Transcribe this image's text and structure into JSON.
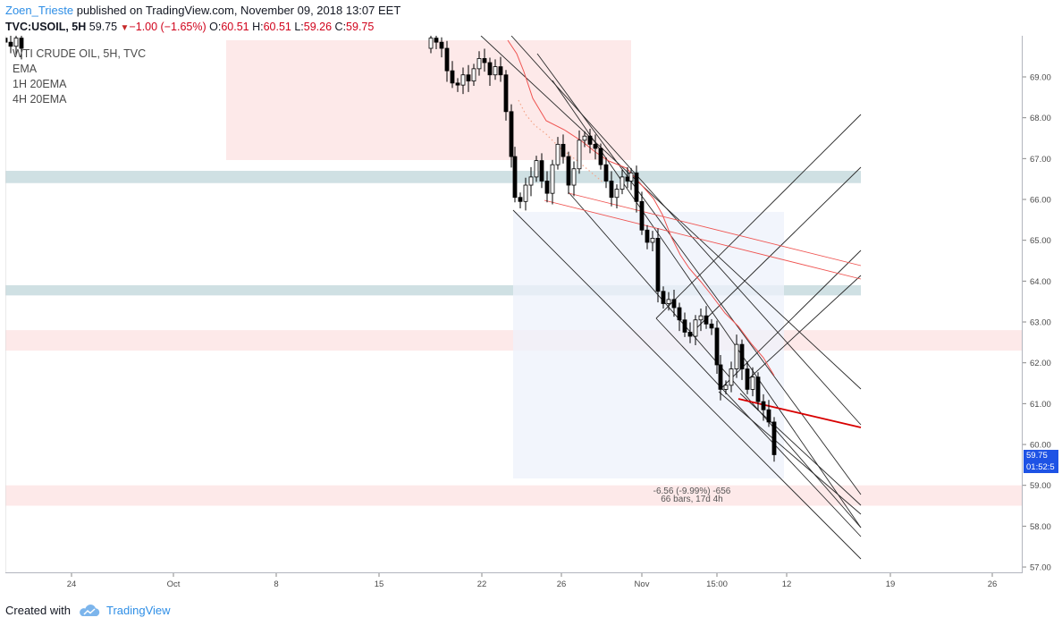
{
  "header": {
    "author": "Zoen_Trieste",
    "published_text": " published on TradingView.com, November 09, 2018 13:07 EET"
  },
  "symbol_bar": {
    "symbol": "TVC:USOIL, 5H",
    "last": "59.75",
    "change": "−1.00 (−1.65%)",
    "open_label": "O:",
    "open": "60.51",
    "high_label": "H:",
    "high": "60.51",
    "low_label": "L:",
    "low": "59.26",
    "close_label": "C:",
    "close": "59.75"
  },
  "legend": {
    "title": "WTI CRUDE OIL, 5H, TVC",
    "items": [
      "EMA",
      "1H 20EMA",
      "4H 20EMA"
    ]
  },
  "colors": {
    "bull": "#ffffff",
    "bear": "#000000",
    "ema": "#ef5350",
    "zone_teal": "#cfe0e3",
    "zone_pink": "#fde9e9",
    "measure_box": "#eef2fb",
    "price_tag": "#1e53e5",
    "accent": "#2e8ee6"
  },
  "measure": {
    "line1": "-6.56 (-9.99%) -656",
    "line2": "66 bars, 17d 4h"
  },
  "price_tags": {
    "last_price": "59.75",
    "countdown": "01:52:5"
  },
  "chart_data": {
    "type": "candlestick",
    "y_axis": {
      "ticks": [
        "69.00",
        "68.00",
        "67.00",
        "66.00",
        "65.00",
        "64.00",
        "63.00",
        "62.00",
        "61.00",
        "60.00",
        "59.00",
        "58.00",
        "57.00"
      ],
      "range": [
        56.86,
        70.0
      ]
    },
    "x_axis": {
      "ticks": [
        "24",
        "Oct",
        "8",
        "15",
        "22",
        "26",
        "Nov",
        "15:00",
        "12",
        "19",
        "26"
      ]
    },
    "series": [
      {
        "name": "WTI CRUDE OIL, 5H, TVC",
        "note": "price path descending from ~69.9 to 59.75"
      }
    ],
    "zones": [
      {
        "type": "support/resistance",
        "color": "teal",
        "from": 66.4,
        "to": 66.7
      },
      {
        "type": "support/resistance",
        "color": "teal",
        "from": 63.65,
        "to": 63.9
      },
      {
        "type": "supply",
        "color": "pink",
        "from": 62.3,
        "to": 62.8
      },
      {
        "type": "demand",
        "color": "pink",
        "from": 58.5,
        "to": 59.0
      }
    ],
    "last_value": 59.75
  },
  "footer": {
    "created_with": "Created with",
    "brand": "TradingView"
  }
}
